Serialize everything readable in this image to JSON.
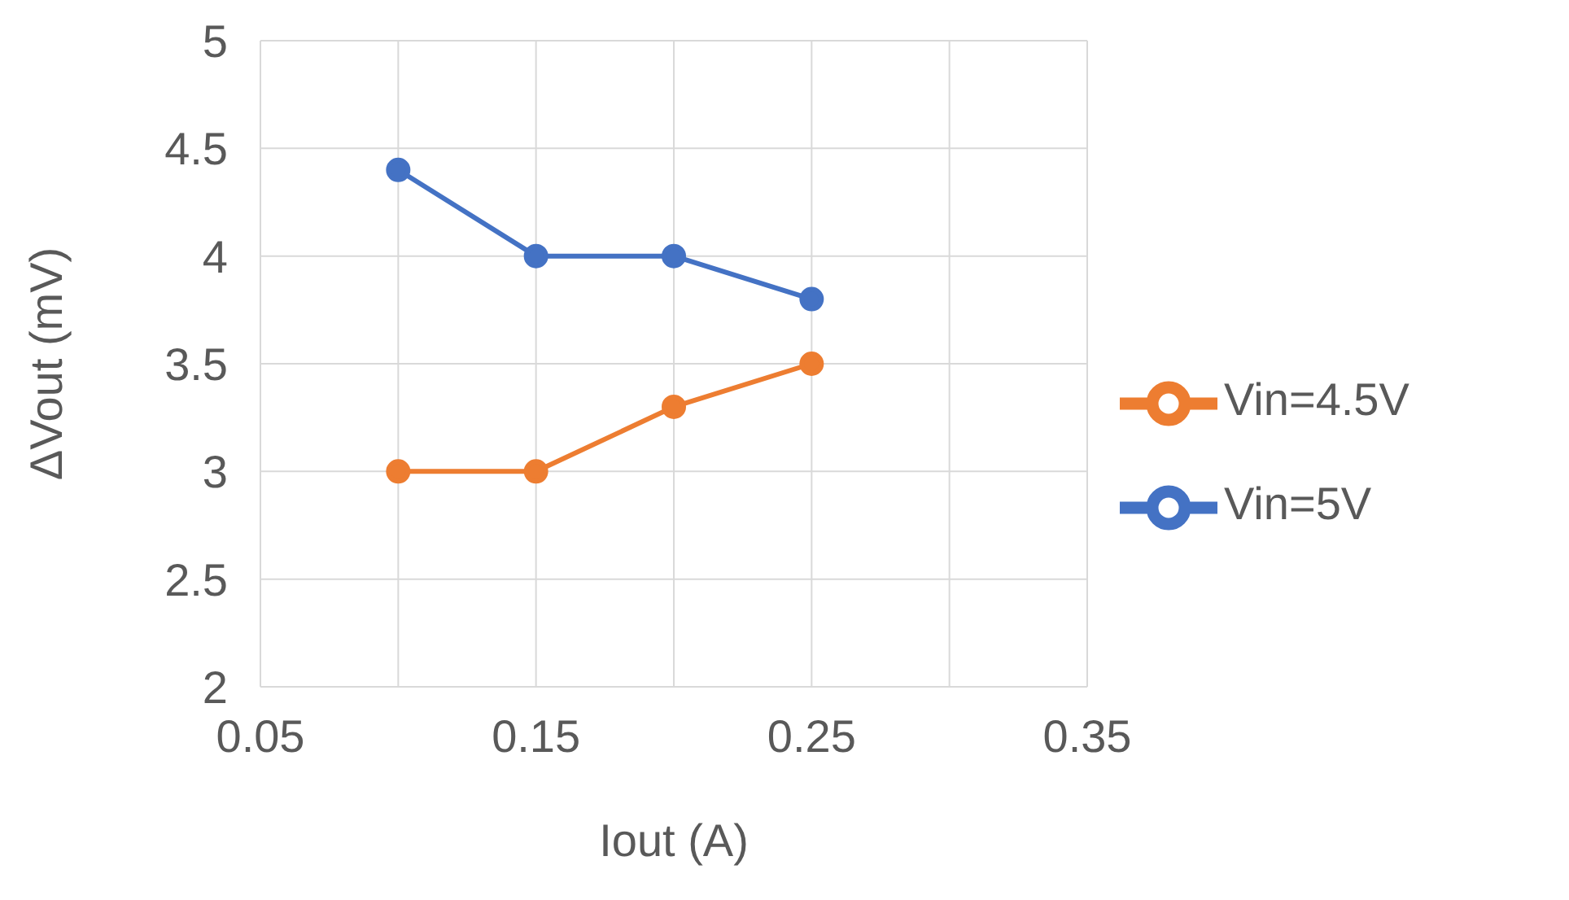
{
  "chart_data": {
    "type": "line",
    "xlabel": "Iout (A)",
    "ylabel": "ΔVout (mV)",
    "x": [
      0.1,
      0.15,
      0.2,
      0.25
    ],
    "series": [
      {
        "name": "Vin=5V",
        "color": "#4472c4",
        "values": [
          4.4,
          4.0,
          4.0,
          3.8
        ]
      },
      {
        "name": "Vin=4.5V",
        "color": "#ed7d31",
        "values": [
          3.0,
          3.0,
          3.3,
          3.5
        ]
      }
    ],
    "xlim": [
      0.05,
      0.35
    ],
    "xticks": [
      0.05,
      {
        "value": 0.1,
        "label": null
      },
      0.15,
      {
        "value": 0.2,
        "label": null
      },
      0.25,
      {
        "value": 0.3,
        "label": null
      },
      0.35
    ],
    "ylim": [
      2,
      5
    ],
    "yticks": [
      2,
      2.5,
      3,
      3.5,
      4,
      4.5,
      5
    ],
    "grid": true,
    "legend": "right",
    "marker": "circle",
    "line_style": "solid"
  }
}
